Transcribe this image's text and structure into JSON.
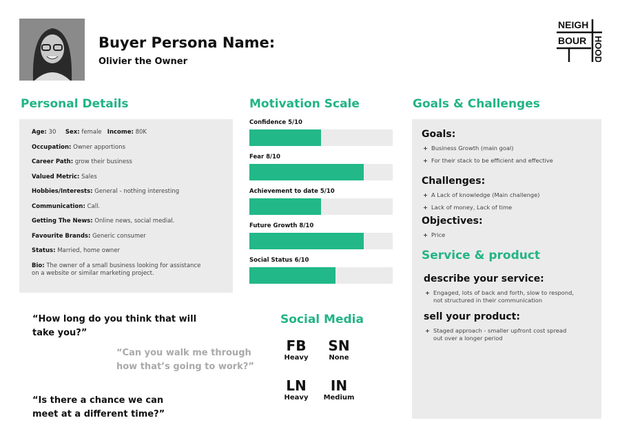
{
  "header": {
    "title": "Buyer Persona Name:",
    "subtitle": "Olivier the Owner",
    "logo_text": "NEIGHBOURHOOD"
  },
  "personal": {
    "heading": "Personal Details",
    "age_label": "Age:",
    "age": "30",
    "sex_label": "Sex:",
    "sex": "female",
    "income_label": "Income:",
    "income": "80K",
    "rows": [
      {
        "label": "Occupation:",
        "value": "Owner apportions"
      },
      {
        "label": "Career Path:",
        "value": "grow their business"
      },
      {
        "label": "Valued Metric:",
        "value": "Sales"
      },
      {
        "label": "Hobbies/Interests:",
        "value": "General - nothing interesting"
      },
      {
        "label": "Communication:",
        "value": "Call."
      },
      {
        "label": "Getting The News:",
        "value": "Online news, social medial."
      },
      {
        "label": "Favourite Brands:",
        "value": "Generic consumer"
      },
      {
        "label": "Status:",
        "value": "Married, home owner"
      },
      {
        "label": "Bio:",
        "value": "The owner of a small business looking for assistance on a website or similar marketing project."
      }
    ]
  },
  "motivation": {
    "heading": "Motivation Scale",
    "max": 10,
    "items": [
      {
        "label": "Confidence 5/10",
        "value": 5
      },
      {
        "label": "Fear 8/10",
        "value": 8
      },
      {
        "label": "Achievement to date 5/10",
        "value": 5
      },
      {
        "label": "Future Growth 8/10",
        "value": 8
      },
      {
        "label": "Social Status 6/10",
        "value": 6
      }
    ]
  },
  "goals": {
    "heading": "Goals & Challenges",
    "goals_title": "Goals:",
    "goals": [
      "Business Growth (main goal)",
      "For their stack to be efficient and effective"
    ],
    "challenges_title": "Challenges:",
    "challenges": [
      "A Lack of knowledge (Main challenge)",
      "Lack of money, Lack of time"
    ],
    "objectives_title": "Objectives:",
    "objectives": [
      "Price"
    ],
    "service_heading": "Service & product",
    "describe_title": "describe your service:",
    "describe": [
      "Engaged, lots of back and forth, slow to respond, not structured in their communication"
    ],
    "sell_title": "sell your product:",
    "sell": [
      "Staged approach - smaller upfront cost spread out over a longer period"
    ]
  },
  "quotes": [
    "“How long do you think that will take you?”",
    "“Can you walk me through how that’s going to work?”",
    "“Is there a chance we can meet at a different time?”"
  ],
  "social": {
    "heading": "Social Media",
    "items": [
      {
        "name": "FB",
        "level": "Heavy"
      },
      {
        "name": "SN",
        "level": "None"
      },
      {
        "name": "LN",
        "level": "Heavy"
      },
      {
        "name": "IN",
        "level": "Medium"
      }
    ]
  },
  "colors": {
    "accent": "#22b486",
    "panel": "#ebebeb"
  }
}
